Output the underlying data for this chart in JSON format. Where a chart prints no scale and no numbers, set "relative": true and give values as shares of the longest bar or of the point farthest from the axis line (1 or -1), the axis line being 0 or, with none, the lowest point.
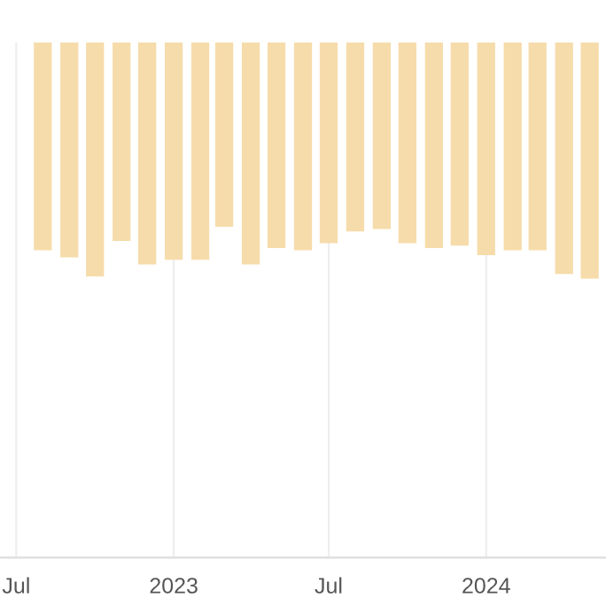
{
  "chart_data": {
    "type": "bar",
    "relative": true,
    "color": "#f6dcab",
    "x": [
      "2022-08",
      "2022-09",
      "2022-10",
      "2022-11",
      "2022-12",
      "2023-01",
      "2023-02",
      "2023-03",
      "2023-04",
      "2023-05",
      "2023-06",
      "2023-07",
      "2023-08",
      "2023-09",
      "2023-10",
      "2023-11",
      "2023-12",
      "2024-01",
      "2024-02",
      "2024-03",
      "2024-04",
      "2024-05"
    ],
    "values": [
      -0.88,
      -0.91,
      -0.99,
      -0.84,
      -0.94,
      -0.92,
      -0.92,
      -0.78,
      -0.94,
      -0.87,
      -0.88,
      -0.85,
      -0.8,
      -0.79,
      -0.85,
      -0.87,
      -0.86,
      -0.9,
      -0.88,
      -0.88,
      -0.98,
      -1
    ],
    "xlim": [
      "2022-06-12",
      "2024-05-20"
    ],
    "xticks": [
      {
        "value": "2022-07",
        "label": "Jul"
      },
      {
        "value": "2023-01",
        "label": "2023"
      },
      {
        "value": "2023-07",
        "label": "Jul"
      },
      {
        "value": "2024-01",
        "label": "2024"
      }
    ],
    "grid": "x"
  }
}
